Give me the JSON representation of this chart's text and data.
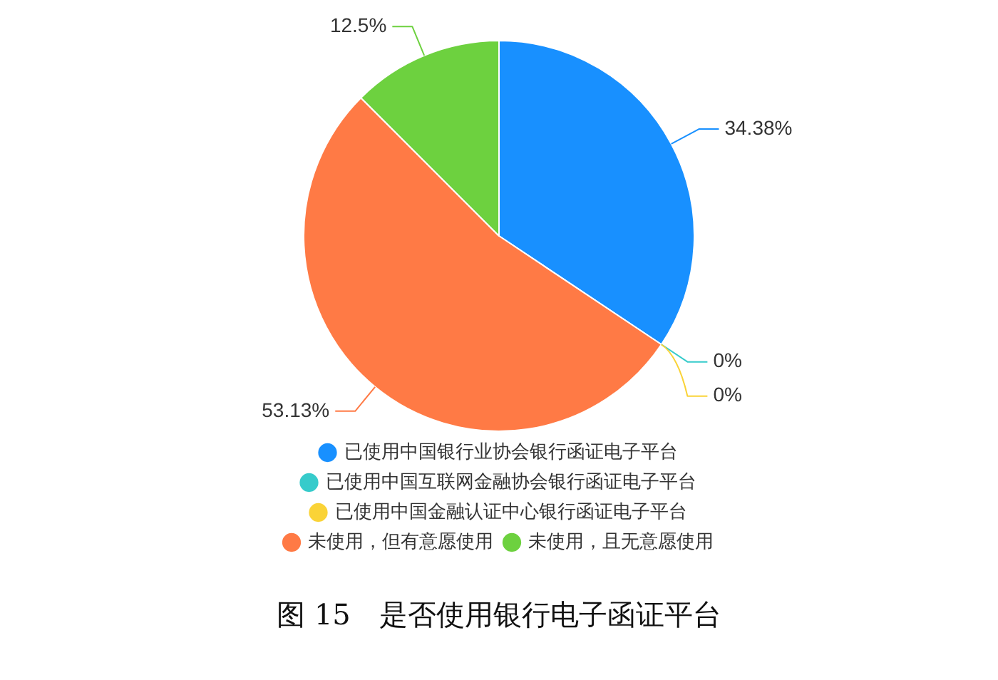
{
  "chart_data": {
    "type": "pie",
    "title": "图 15　是否使用银行电子函证平台",
    "categories": [
      "已使用中国银行业协会银行函证电子平台",
      "已使用中国互联网金融协会银行函证电子平台",
      "已使用中国金融认证中心银行函证电子平台",
      "未使用，但有意愿使用",
      "未使用，且无意愿使用"
    ],
    "values": [
      34.38,
      0,
      0,
      53.13,
      12.5
    ],
    "value_labels": [
      "34.38%",
      "0%",
      "0%",
      "53.13%",
      "12.5%"
    ],
    "colors": [
      "#1890ff",
      "#36cbcb",
      "#fad337",
      "#ff7a45",
      "#6dd13f"
    ],
    "legend": "bottom"
  }
}
